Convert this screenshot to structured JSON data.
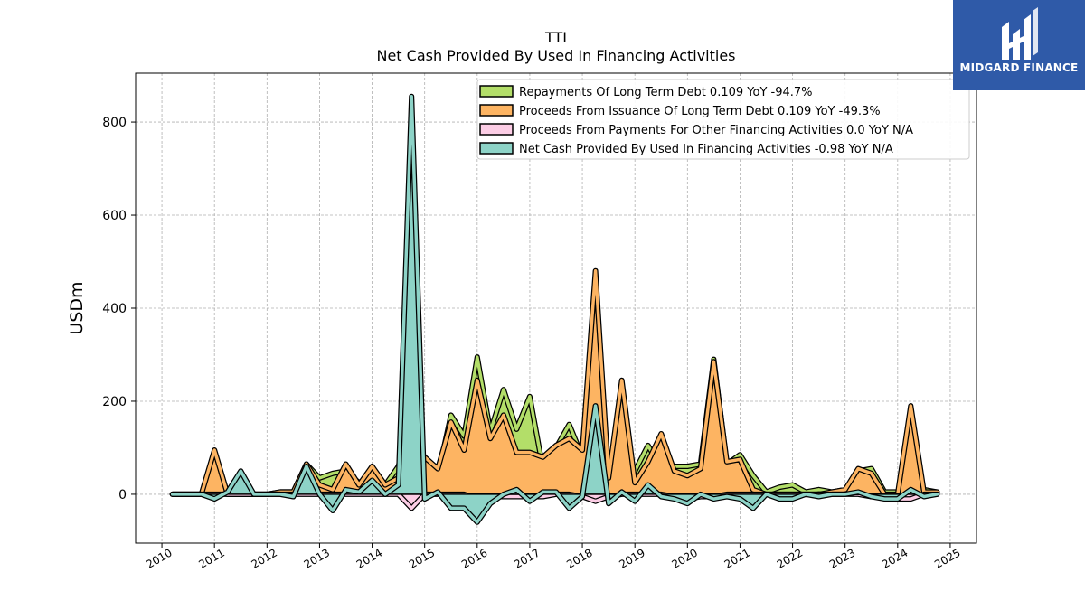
{
  "chart_data": {
    "type": "area",
    "title": "TTI",
    "subtitle": "Net Cash Provided By Used In Financing Activities",
    "xlabel": "",
    "ylabel": "USDm",
    "xlim": [
      2009.5,
      2025.5
    ],
    "ylim": [
      -105,
      905
    ],
    "x_ticks": [
      "2010",
      "2011",
      "2012",
      "2013",
      "2014",
      "2015",
      "2016",
      "2017",
      "2018",
      "2019",
      "2020",
      "2021",
      "2022",
      "2023",
      "2024",
      "2025"
    ],
    "y_ticks": [
      0,
      200,
      400,
      600,
      800
    ],
    "grid": true,
    "legend_position": "top-right",
    "x": [
      2010.2,
      2010.5,
      2010.75,
      2011.0,
      2011.25,
      2011.5,
      2011.75,
      2012.0,
      2012.25,
      2012.5,
      2012.75,
      2013.0,
      2013.25,
      2013.5,
      2013.75,
      2014.0,
      2014.25,
      2014.5,
      2014.75,
      2015.0,
      2015.25,
      2015.5,
      2015.75,
      2016.0,
      2016.25,
      2016.5,
      2016.75,
      2017.0,
      2017.25,
      2017.5,
      2017.75,
      2018.0,
      2018.25,
      2018.5,
      2018.75,
      2019.0,
      2019.25,
      2019.5,
      2019.75,
      2020.0,
      2020.25,
      2020.5,
      2020.75,
      2021.0,
      2021.25,
      2021.5,
      2021.75,
      2022.0,
      2022.25,
      2022.5,
      2022.75,
      2023.0,
      2023.25,
      2023.5,
      2023.75,
      2024.0,
      2024.25,
      2024.5,
      2024.75
    ],
    "series": [
      {
        "name": "Repayments Of Long Term Debt  0.109 YoY -94.7%",
        "color": "#b3de69",
        "values": [
          0,
          0,
          0,
          80,
          0,
          0,
          0,
          0,
          5,
          5,
          65,
          35,
          45,
          50,
          25,
          40,
          20,
          60,
          165,
          50,
          40,
          170,
          125,
          295,
          135,
          225,
          140,
          210,
          55,
          100,
          150,
          80,
          285,
          25,
          10,
          50,
          105,
          55,
          60,
          60,
          65,
          290,
          65,
          85,
          40,
          5,
          15,
          20,
          5,
          10,
          5,
          10,
          50,
          55,
          5,
          5,
          5,
          10,
          5
        ]
      },
      {
        "name": "Proceeds From Issuance Of Long Term Debt  0.109 YoY -49.3%",
        "color": "#fdb462",
        "values": [
          0,
          0,
          0,
          95,
          0,
          0,
          0,
          0,
          5,
          5,
          65,
          20,
          10,
          65,
          20,
          60,
          20,
          35,
          120,
          80,
          55,
          155,
          95,
          245,
          120,
          170,
          90,
          90,
          80,
          105,
          120,
          95,
          480,
          35,
          245,
          25,
          70,
          130,
          50,
          40,
          55,
          285,
          70,
          75,
          10,
          0,
          0,
          0,
          0,
          0,
          5,
          10,
          55,
          45,
          0,
          0,
          190,
          5,
          5
        ]
      },
      {
        "name": "Proceeds From Payments For Other Financing Activities  0.0 YoY N/A",
        "color": "#fccde5",
        "values": [
          0,
          0,
          0,
          0,
          0,
          0,
          0,
          0,
          0,
          0,
          0,
          0,
          0,
          0,
          0,
          0,
          0,
          0,
          -30,
          0,
          0,
          0,
          0,
          -10,
          -5,
          -5,
          -5,
          -5,
          -5,
          0,
          0,
          -5,
          -15,
          -5,
          0,
          0,
          0,
          0,
          -5,
          -10,
          -5,
          -5,
          0,
          0,
          0,
          0,
          0,
          0,
          0,
          0,
          0,
          0,
          0,
          -5,
          -5,
          -10,
          -10,
          0,
          0
        ]
      },
      {
        "name": "Net Cash Provided By Used In Financing Activities  -0.98 YoY N/A",
        "color": "#8dd3c7",
        "values": [
          0,
          0,
          0,
          -10,
          5,
          50,
          0,
          0,
          0,
          -5,
          60,
          0,
          -35,
          10,
          5,
          30,
          0,
          20,
          855,
          -10,
          5,
          -30,
          -30,
          -60,
          -20,
          0,
          10,
          -15,
          5,
          5,
          -30,
          -5,
          190,
          -20,
          5,
          -15,
          20,
          -5,
          -10,
          -20,
          0,
          -10,
          -5,
          -10,
          -30,
          0,
          -10,
          -10,
          0,
          -5,
          0,
          0,
          5,
          -5,
          -10,
          -10,
          10,
          -5,
          0
        ]
      }
    ]
  },
  "logo": {
    "text": "MIDGARD FINANCE",
    "color": "#2f5aa8"
  }
}
